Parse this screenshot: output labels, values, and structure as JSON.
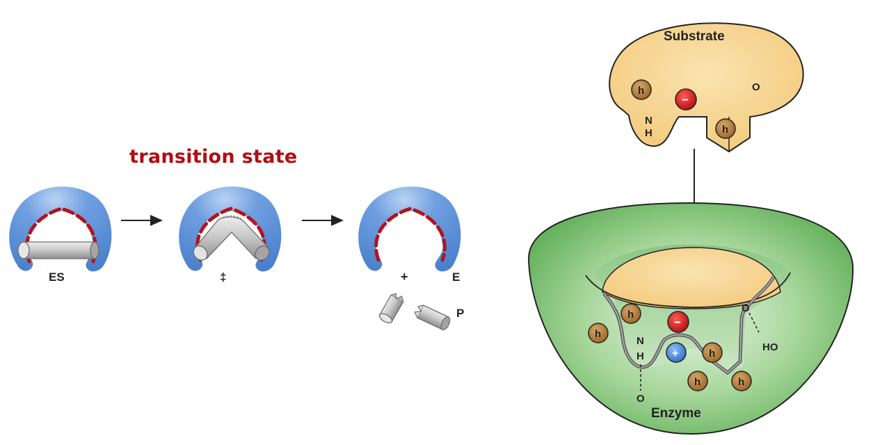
{
  "title": "transition state",
  "stages": {
    "es": "ES",
    "ts": "‡",
    "plus": "+",
    "enzyme_free": "E",
    "product": "P"
  },
  "binding": {
    "substrate": "Substrate",
    "enzyme": "Enzyme",
    "hydrophobic": "h",
    "negative": "−",
    "positive": "+",
    "n": "N",
    "h_atom": "H",
    "o": "O",
    "ho": "HO"
  },
  "colors": {
    "title": "#b00d12",
    "enzyme_blue": "#5b8fd6",
    "binding_red": "#b5121b",
    "substrate_tan": "#f7cf86",
    "enzyme_green": "#7fc07a",
    "hydrophobic_brown": "#b07a2e",
    "negative_red": "#c8151b",
    "positive_blue": "#3d7fd0"
  }
}
